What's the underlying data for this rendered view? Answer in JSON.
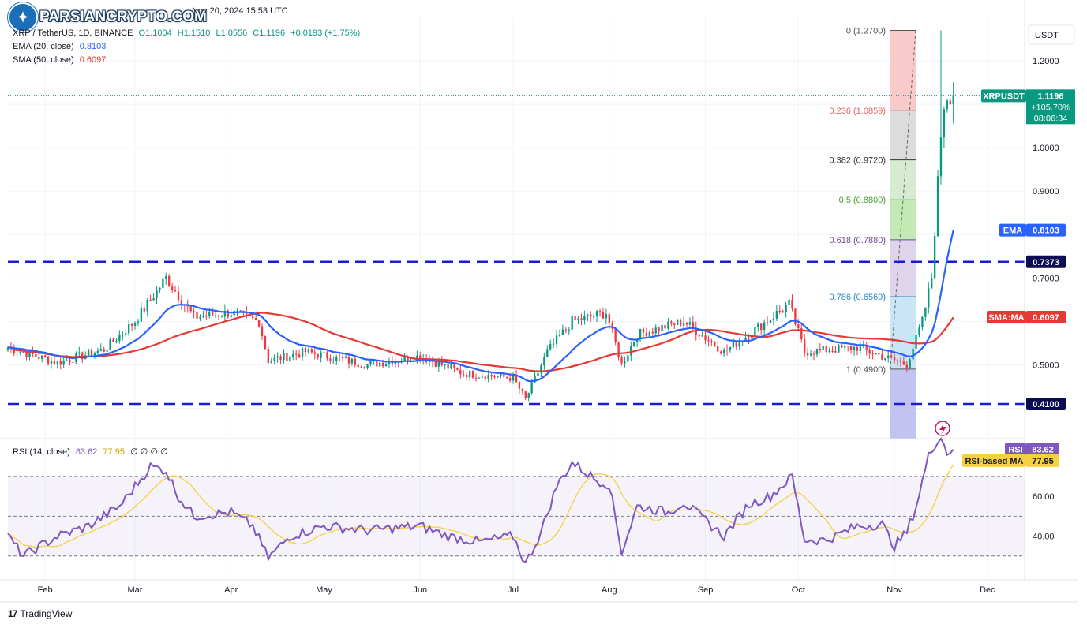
{
  "header": {
    "date_line": "Nov 20, 2024 15:53 UTC",
    "symbol_line": "XRP / TetherUS, 1D, BINANCE",
    "ohlc": {
      "o_label": "O",
      "o": "1.1004",
      "h_label": "H",
      "h": "1.1510",
      "l_label": "L",
      "l": "1.0556",
      "c_label": "C",
      "c": "1.1196",
      "change": "+0.0193 (+1.75%)"
    },
    "ema_label": "EMA (20, close)",
    "ema_value": "0.8103",
    "sma_label": "SMA (50, close)",
    "sma_value": "0.6097"
  },
  "logo_text": "PARSIANCRYPTO.COM",
  "footer_brand": "TradingView",
  "colors": {
    "up": "#089981",
    "down": "#f23645",
    "ema": "#2962ff",
    "sma": "#e53935",
    "rsi": "#7e57c2",
    "rsi_ma": "#f5d142",
    "level": "#1a1adb"
  },
  "chart_data": [
    {
      "type": "candlestick",
      "currency_label": "USDT",
      "y_ticks": [
        "1.2000",
        "1.0000",
        "0.9000",
        "0.7000",
        "0.5000"
      ],
      "ylim": [
        0.33,
        1.3
      ],
      "x_ticks": [
        "Feb",
        "Mar",
        "Apr",
        "May",
        "Jun",
        "Jul",
        "Aug",
        "Sep",
        "Oct",
        "Nov",
        "Dec"
      ],
      "price_anchors": [
        [
          "2024-01-20",
          0.54
        ],
        [
          "2024-02-05",
          0.505
        ],
        [
          "2024-02-20",
          0.535
        ],
        [
          "2024-03-01",
          0.6
        ],
        [
          "2024-03-11",
          0.7
        ],
        [
          "2024-03-20",
          0.61
        ],
        [
          "2024-04-01",
          0.62
        ],
        [
          "2024-04-10",
          0.6
        ],
        [
          "2024-04-13",
          0.51
        ],
        [
          "2024-04-25",
          0.53
        ],
        [
          "2024-05-15",
          0.5
        ],
        [
          "2024-06-01",
          0.52
        ],
        [
          "2024-06-15",
          0.48
        ],
        [
          "2024-07-01",
          0.47
        ],
        [
          "2024-07-05",
          0.42
        ],
        [
          "2024-07-12",
          0.53
        ],
        [
          "2024-07-20",
          0.6
        ],
        [
          "2024-07-31",
          0.62
        ],
        [
          "2024-08-05",
          0.5
        ],
        [
          "2024-08-10",
          0.57
        ],
        [
          "2024-08-25",
          0.6
        ],
        [
          "2024-09-07",
          0.53
        ],
        [
          "2024-09-15",
          0.57
        ],
        [
          "2024-09-28",
          0.64
        ],
        [
          "2024-10-03",
          0.53
        ],
        [
          "2024-10-20",
          0.54
        ],
        [
          "2024-11-01",
          0.51
        ],
        [
          "2024-11-05",
          0.5
        ],
        [
          "2024-11-10",
          0.6
        ],
        [
          "2024-11-13",
          0.7
        ],
        [
          "2024-11-16",
          1.03
        ],
        [
          "2024-11-17",
          1.1
        ],
        [
          "2024-11-18",
          1.12
        ],
        [
          "2024-11-20",
          1.1196
        ]
      ],
      "ema": {
        "label": "EMA",
        "value": "0.8103"
      },
      "sma": {
        "label": "SMA:MA",
        "value": "0.6097"
      },
      "last_price": {
        "symbol": "XRPUSDT",
        "price": "1.1196",
        "change": "+105.70%",
        "countdown": "08:06:34"
      },
      "horizontal_levels": [
        {
          "value": 0.7373,
          "label": "0.7373"
        },
        {
          "value": 0.41,
          "label": "0.4100"
        }
      ],
      "fibonacci": [
        {
          "ratio": "0",
          "label": "0 (1.2700)",
          "price": 1.27,
          "color": "#f7c1c1",
          "text_color": "#555555"
        },
        {
          "ratio": "0.236",
          "label": "0.236 (1.0859)",
          "price": 1.0859,
          "color": "#d6d6d6",
          "text_color": "#e06666"
        },
        {
          "ratio": "0.382",
          "label": "0.382 (0.9720)",
          "price": 0.972,
          "color": "#cfe8c9",
          "text_color": "#333333"
        },
        {
          "ratio": "0.5",
          "label": "0.5 (0.8800)",
          "price": 0.88,
          "color": "#b8e6a8",
          "text_color": "#4a9f2b"
        },
        {
          "ratio": "0.618",
          "label": "0.618 (0.7880)",
          "price": 0.788,
          "color": "#d8cde8",
          "text_color": "#6a4c93"
        },
        {
          "ratio": "0.786",
          "label": "0.786 (0.6569)",
          "price": 0.6569,
          "color": "#bfe1f5",
          "text_color": "#2a8ac6"
        },
        {
          "ratio": "1",
          "label": "1 (0.4900)",
          "price": 0.49,
          "color": "#c9c9f2",
          "text_color": "#555555"
        }
      ]
    },
    {
      "type": "line",
      "indicator_label": "RSI (14, close)",
      "value": "83.62",
      "ma_value": "77.95",
      "extra": [
        "∅",
        "∅",
        "∅",
        "∅"
      ],
      "y_ticks": [
        "60.00",
        "40.00"
      ],
      "ylim": [
        18,
        89
      ],
      "bands": {
        "upper": 70,
        "middle": 50,
        "lower": 30
      },
      "rsi_label": "RSI",
      "ma_label": "RSI-based MA",
      "rsi_anchors": [
        [
          "2024-01-20",
          40
        ],
        [
          "2024-01-25",
          30
        ],
        [
          "2024-02-05",
          40
        ],
        [
          "2024-02-15",
          45
        ],
        [
          "2024-02-25",
          55
        ],
        [
          "2024-03-01",
          65
        ],
        [
          "2024-03-06",
          75
        ],
        [
          "2024-03-11",
          73
        ],
        [
          "2024-03-15",
          60
        ],
        [
          "2024-03-20",
          50
        ],
        [
          "2024-04-01",
          52
        ],
        [
          "2024-04-08",
          45
        ],
        [
          "2024-04-13",
          29
        ],
        [
          "2024-04-20",
          40
        ],
        [
          "2024-05-01",
          45
        ],
        [
          "2024-05-15",
          43
        ],
        [
          "2024-06-01",
          45
        ],
        [
          "2024-06-10",
          40
        ],
        [
          "2024-06-20",
          37
        ],
        [
          "2024-07-01",
          40
        ],
        [
          "2024-07-05",
          26
        ],
        [
          "2024-07-10",
          42
        ],
        [
          "2024-07-15",
          65
        ],
        [
          "2024-07-20",
          77
        ],
        [
          "2024-07-28",
          68
        ],
        [
          "2024-08-01",
          66
        ],
        [
          "2024-08-05",
          32
        ],
        [
          "2024-08-10",
          55
        ],
        [
          "2024-08-20",
          52
        ],
        [
          "2024-08-25",
          57
        ],
        [
          "2024-09-07",
          40
        ],
        [
          "2024-09-15",
          56
        ],
        [
          "2024-09-22",
          60
        ],
        [
          "2024-09-29",
          70
        ],
        [
          "2024-10-03",
          38
        ],
        [
          "2024-10-10",
          38
        ],
        [
          "2024-10-20",
          45
        ],
        [
          "2024-10-28",
          46
        ],
        [
          "2024-11-01",
          35
        ],
        [
          "2024-11-05",
          42
        ],
        [
          "2024-11-08",
          55
        ],
        [
          "2024-11-12",
          80
        ],
        [
          "2024-11-16",
          92
        ],
        [
          "2024-11-17",
          86
        ],
        [
          "2024-11-18",
          82
        ],
        [
          "2024-11-20",
          83.62
        ]
      ]
    }
  ]
}
